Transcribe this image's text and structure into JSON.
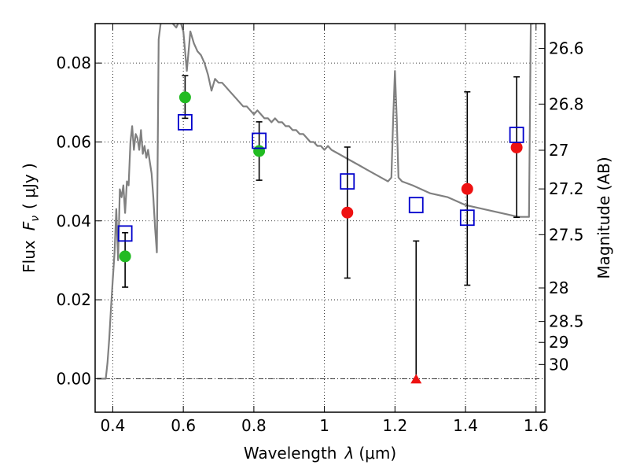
{
  "chart_data": {
    "type": "scatter",
    "xlabel": "Wavelength",
    "xlabel_symbol": "λ",
    "xlabel_unit": "(μm)",
    "ylabel": "Flux",
    "ylabel_symbol": "F",
    "ylabel_subscript": "ν",
    "ylabel_unit": "( μJy )",
    "y2label": "Magnitude (AB)",
    "xlim": [
      0.35,
      1.625
    ],
    "ylim": [
      -0.0085,
      0.09
    ],
    "grid": true,
    "x_ticks": [
      0.4,
      0.6,
      0.8,
      1.0,
      1.2,
      1.4,
      1.6
    ],
    "x_tick_labels": [
      "0.4",
      "0.6",
      "0.8",
      "1",
      "1.2",
      "1.4",
      "1.6"
    ],
    "y_ticks": [
      0.0,
      0.02,
      0.04,
      0.06,
      0.08
    ],
    "y_tick_labels": [
      "0.00",
      "0.02",
      "0.04",
      "0.06",
      "0.08"
    ],
    "y2_ticks": [
      {
        "label": "26.6",
        "flux": 0.0837
      },
      {
        "label": "26.8",
        "flux": 0.0696
      },
      {
        "label": "27",
        "flux": 0.0579
      },
      {
        "label": "27.2",
        "flux": 0.0481
      },
      {
        "label": "27.5",
        "flux": 0.0365
      },
      {
        "label": "28",
        "flux": 0.023
      },
      {
        "label": "28.5",
        "flux": 0.0145
      },
      {
        "label": "29",
        "flux": 0.0092
      },
      {
        "label": "30",
        "flux": 0.0036
      }
    ],
    "zero_line": 0.0,
    "colors": {
      "model": "#808080",
      "model_photometry": "#0000cc",
      "detected": "#22bb22",
      "measured": "#ee1111",
      "upper_limit": "#ee1111",
      "errorbar": "#000000"
    },
    "model_spectrum": {
      "x": [
        0.355,
        0.38,
        0.385,
        0.39,
        0.395,
        0.4,
        0.405,
        0.41,
        0.415,
        0.42,
        0.425,
        0.43,
        0.435,
        0.44,
        0.445,
        0.45,
        0.455,
        0.46,
        0.465,
        0.47,
        0.475,
        0.48,
        0.485,
        0.49,
        0.495,
        0.5,
        0.505,
        0.51,
        0.515,
        0.52,
        0.525,
        0.53,
        0.54,
        0.55,
        0.56,
        0.57,
        0.58,
        0.59,
        0.6,
        0.61,
        0.62,
        0.63,
        0.64,
        0.65,
        0.66,
        0.67,
        0.68,
        0.69,
        0.7,
        0.71,
        0.72,
        0.73,
        0.74,
        0.75,
        0.76,
        0.77,
        0.78,
        0.79,
        0.8,
        0.81,
        0.82,
        0.83,
        0.84,
        0.85,
        0.86,
        0.87,
        0.88,
        0.89,
        0.9,
        0.91,
        0.92,
        0.93,
        0.94,
        0.95,
        0.96,
        0.97,
        0.98,
        0.99,
        1.0,
        1.01,
        1.02,
        1.04,
        1.06,
        1.08,
        1.1,
        1.12,
        1.14,
        1.16,
        1.18,
        1.19,
        1.195,
        1.2,
        1.205,
        1.21,
        1.22,
        1.25,
        1.3,
        1.35,
        1.4,
        1.45,
        1.5,
        1.55,
        1.58,
        1.585,
        1.59,
        1.592
      ],
      "y": [
        0.0,
        0.0,
        0.004,
        0.01,
        0.018,
        0.025,
        0.032,
        0.043,
        0.03,
        0.048,
        0.046,
        0.049,
        0.042,
        0.05,
        0.049,
        0.06,
        0.064,
        0.058,
        0.062,
        0.061,
        0.058,
        0.063,
        0.057,
        0.059,
        0.056,
        0.058,
        0.055,
        0.052,
        0.046,
        0.038,
        0.032,
        0.086,
        0.093,
        0.091,
        0.093,
        0.09,
        0.089,
        0.091,
        0.088,
        0.078,
        0.088,
        0.085,
        0.083,
        0.082,
        0.08,
        0.077,
        0.073,
        0.076,
        0.075,
        0.075,
        0.074,
        0.073,
        0.072,
        0.071,
        0.07,
        0.069,
        0.069,
        0.068,
        0.067,
        0.068,
        0.067,
        0.066,
        0.066,
        0.065,
        0.066,
        0.065,
        0.065,
        0.064,
        0.064,
        0.063,
        0.063,
        0.062,
        0.062,
        0.061,
        0.06,
        0.06,
        0.059,
        0.059,
        0.058,
        0.059,
        0.058,
        0.057,
        0.056,
        0.055,
        0.054,
        0.053,
        0.052,
        0.051,
        0.05,
        0.051,
        0.066,
        0.078,
        0.066,
        0.051,
        0.05,
        0.049,
        0.047,
        0.046,
        0.044,
        0.043,
        0.042,
        0.041,
        0.041,
        0.09,
        0.09,
        0.09
      ]
    },
    "model_photometry": {
      "x": [
        0.435,
        0.605,
        0.815,
        1.065,
        1.26,
        1.405,
        1.545
      ],
      "y": [
        0.0368,
        0.065,
        0.0603,
        0.05,
        0.044,
        0.0408,
        0.0618
      ]
    },
    "detections": {
      "x": [
        0.435,
        0.605,
        0.815
      ],
      "y": [
        0.031,
        0.0713,
        0.0577
      ],
      "err_low": [
        0.0232,
        0.066,
        0.0503
      ],
      "err_high": [
        0.037,
        0.0768,
        0.0651
      ]
    },
    "measurements": {
      "x": [
        1.065,
        1.405,
        1.545
      ],
      "y": [
        0.0421,
        0.0481,
        0.0586
      ],
      "err_low": [
        0.0255,
        0.0237,
        0.0409
      ],
      "err_high": [
        0.0587,
        0.0727,
        0.0765
      ]
    },
    "upper_limits": {
      "x": [
        1.26
      ],
      "y": [
        0.0
      ],
      "err_high": [
        0.0349
      ]
    }
  }
}
